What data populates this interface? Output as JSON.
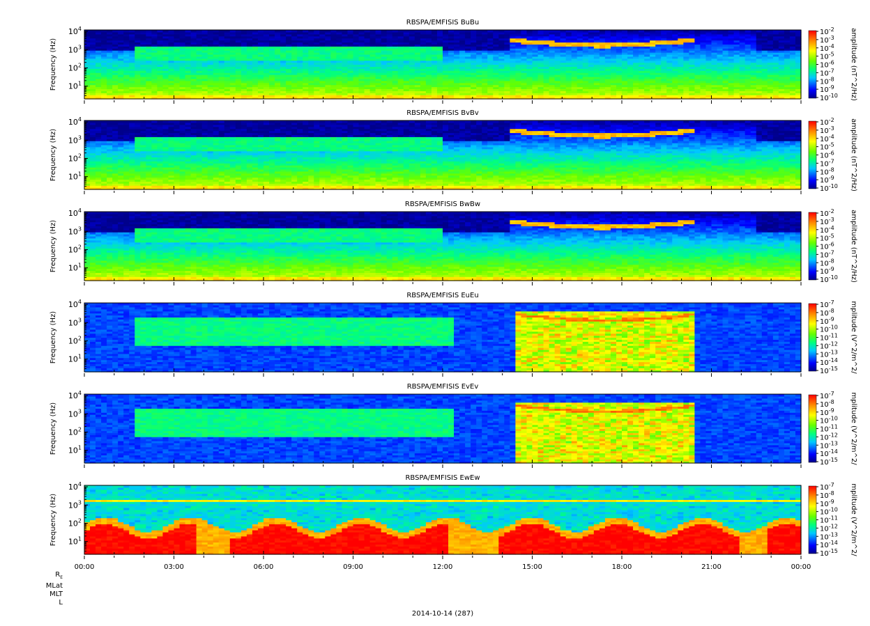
{
  "chart_data": [
    {
      "type": "heatmap",
      "title": "RBSPA/EMFISIS  BuBu",
      "ylabel": "Frequency (Hz)",
      "ytick_labels": [
        "10",
        "10",
        "10",
        "10"
      ],
      "ytick_exps": [
        "1",
        "2",
        "3",
        "4"
      ],
      "cbar_label": "amplitude (nT^2/Hz)",
      "cbar_ticks": [
        "-2",
        "-3",
        "-4",
        "-5",
        "-6",
        "-7",
        "-8",
        "-9",
        "-10"
      ],
      "field": "B",
      "band": "u",
      "ylim": [
        2,
        12000
      ],
      "crange": [
        -10,
        -2
      ],
      "colors": {
        "low": "#00008b",
        "high": "#ff0000"
      }
    },
    {
      "type": "heatmap",
      "title": "RBSPA/EMFISIS  BvBv",
      "ylabel": "Frequency (Hz)",
      "ytick_labels": [
        "10",
        "10",
        "10",
        "10"
      ],
      "ytick_exps": [
        "1",
        "2",
        "3",
        "4"
      ],
      "cbar_label": "amplitude (nT^2/Hz)",
      "cbar_ticks": [
        "-2",
        "-3",
        "-4",
        "-5",
        "-6",
        "-7",
        "-8",
        "-9",
        "-10"
      ],
      "field": "B",
      "band": "v",
      "ylim": [
        2,
        12000
      ],
      "crange": [
        -10,
        -2
      ],
      "colors": {
        "low": "#00008b",
        "high": "#ff0000"
      }
    },
    {
      "type": "heatmap",
      "title": "RBSPA/EMFISIS  BwBw",
      "ylabel": "Frequency (Hz)",
      "ytick_labels": [
        "10",
        "10",
        "10",
        "10"
      ],
      "ytick_exps": [
        "1",
        "2",
        "3",
        "4"
      ],
      "cbar_label": "amplitude (nT^2/Hz)",
      "cbar_ticks": [
        "-2",
        "-3",
        "-4",
        "-5",
        "-6",
        "-7",
        "-8",
        "-9",
        "-10"
      ],
      "field": "B",
      "band": "w",
      "ylim": [
        2,
        12000
      ],
      "crange": [
        -10,
        -2
      ],
      "colors": {
        "low": "#00008b",
        "high": "#ff0000"
      }
    },
    {
      "type": "heatmap",
      "title": "RBSPA/EMFISIS  EuEu",
      "ylabel": "Frequency (Hz)",
      "ytick_labels": [
        "10",
        "10",
        "10",
        "10"
      ],
      "ytick_exps": [
        "1",
        "2",
        "3",
        "4"
      ],
      "cbar_label": "mplitude (V^2/m^2/",
      "cbar_ticks": [
        "-7",
        "-8",
        "-9",
        "-10",
        "-11",
        "-12",
        "-13",
        "-14",
        "-15"
      ],
      "field": "E",
      "band": "u",
      "ylim": [
        2,
        12000
      ],
      "crange": [
        -15,
        -7
      ],
      "colors": {
        "low": "#00008b",
        "high": "#ff0000"
      }
    },
    {
      "type": "heatmap",
      "title": "RBSPA/EMFISIS  EvEv",
      "ylabel": "Frequency (Hz)",
      "ytick_labels": [
        "10",
        "10",
        "10",
        "10"
      ],
      "ytick_exps": [
        "1",
        "2",
        "3",
        "4"
      ],
      "cbar_label": "mplitude (V^2/m^2/",
      "cbar_ticks": [
        "-7",
        "-8",
        "-9",
        "-10",
        "-11",
        "-12",
        "-13",
        "-14",
        "-15"
      ],
      "field": "E",
      "band": "v",
      "ylim": [
        2,
        12000
      ],
      "crange": [
        -15,
        -7
      ],
      "colors": {
        "low": "#00008b",
        "high": "#ff0000"
      }
    },
    {
      "type": "heatmap",
      "title": "RBSPA/EMFISIS  EwEw",
      "ylabel": "Frequency (Hz)",
      "ytick_labels": [
        "10",
        "10",
        "10",
        "10"
      ],
      "ytick_exps": [
        "1",
        "2",
        "3",
        "4"
      ],
      "cbar_label": "mplitude (V^2/m^2/",
      "cbar_ticks": [
        "-7",
        "-8",
        "-9",
        "-10",
        "-11",
        "-12",
        "-13",
        "-14",
        "-15"
      ],
      "field": "Ew",
      "band": "w",
      "ylim": [
        2,
        12000
      ],
      "crange": [
        -15,
        -7
      ],
      "colors": {
        "low": "#00008b",
        "high": "#ff0000"
      }
    }
  ],
  "xaxis": {
    "ticks": [
      "00:00",
      "03:00",
      "06:00",
      "09:00",
      "12:00",
      "15:00",
      "18:00",
      "21:00",
      "00:00"
    ],
    "range_hours": [
      0,
      24
    ]
  },
  "ephemeris_labels": [
    "R",
    "MLat",
    "MLT",
    "L"
  ],
  "ephemeris_sub": "E",
  "date_label": "2014-10-14 (287)"
}
